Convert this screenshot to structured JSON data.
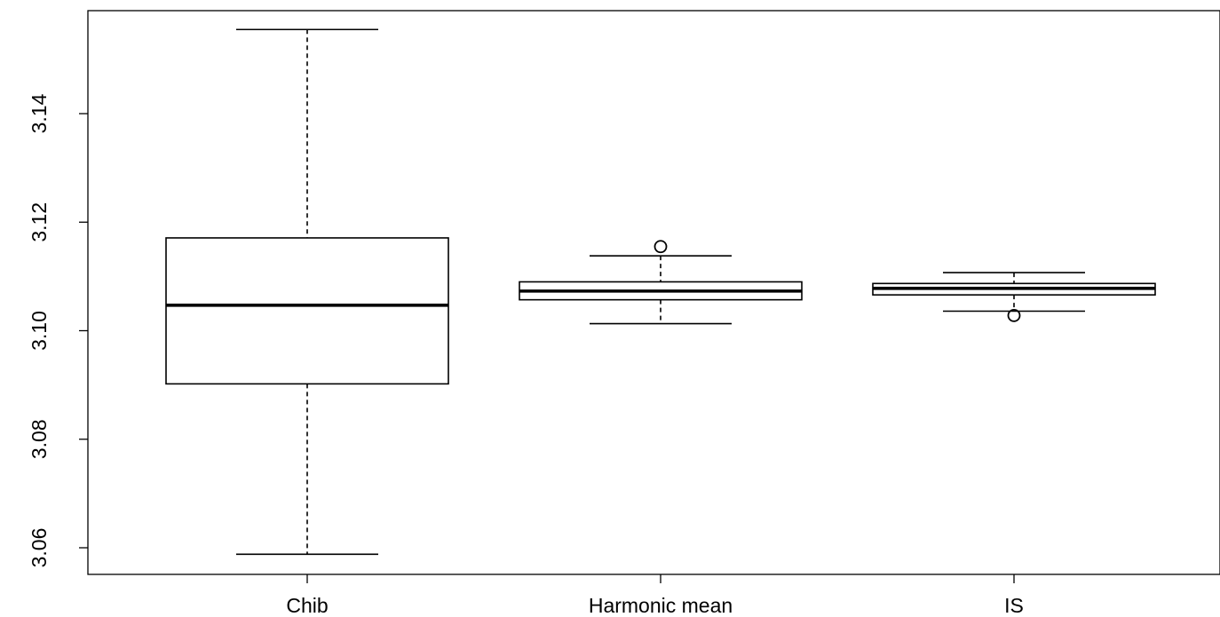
{
  "chart_data": {
    "type": "boxplot",
    "title": "",
    "xlabel": "",
    "ylabel": "",
    "ylim": [
      3.055,
      3.1565
    ],
    "yticks": [
      3.06,
      3.08,
      3.1,
      3.12,
      3.14
    ],
    "ytick_labels": [
      "3.06",
      "3.08",
      "3.10",
      "3.12",
      "3.14"
    ],
    "categories": [
      "Chib",
      "Harmonic mean",
      "IS"
    ],
    "boxes": [
      {
        "category": "Chib",
        "whisker_low": 3.0588,
        "q1": 3.0902,
        "median": 3.1047,
        "q3": 3.1171,
        "whisker_high": 3.1555,
        "outliers": []
      },
      {
        "category": "Harmonic mean",
        "whisker_low": 3.1013,
        "q1": 3.1057,
        "median": 3.1073,
        "q3": 3.109,
        "whisker_high": 3.1138,
        "outliers": [
          3.1155
        ]
      },
      {
        "category": "IS",
        "whisker_low": 3.1036,
        "q1": 3.1066,
        "median": 3.1078,
        "q3": 3.1087,
        "whisker_high": 3.1107,
        "outliers": [
          3.1028
        ]
      }
    ],
    "grid": false,
    "legend": "none",
    "colors": {
      "line": "#000000",
      "fill": "#ffffff"
    }
  }
}
